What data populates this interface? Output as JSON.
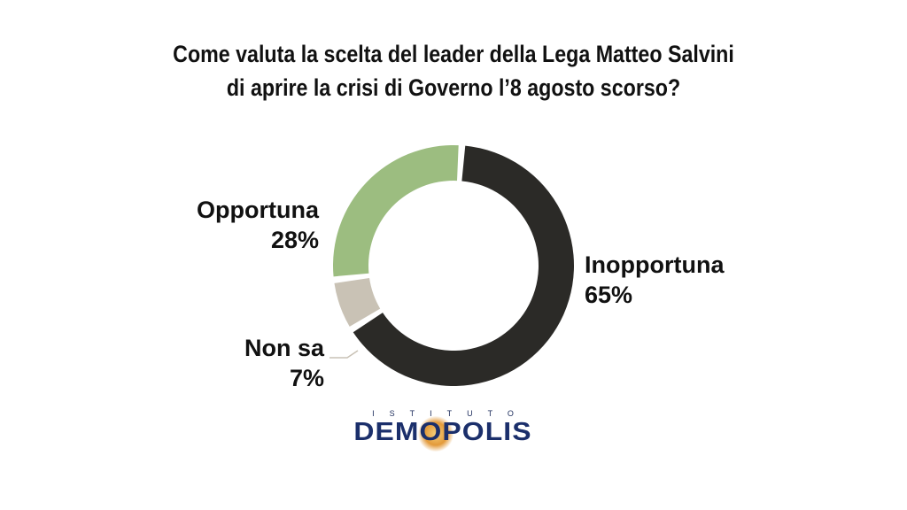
{
  "title_lines": [
    "Come valuta la scelta del leader della Lega Matteo Salvini",
    "di aprire la crisi di Governo l’8 agosto scorso?"
  ],
  "chart_data": {
    "type": "pie",
    "title": "Come valuta la scelta del leader della Lega Matteo Salvini di aprire la crisi di Governo l’8 agosto scorso?",
    "categories": [
      "Inopportuna",
      "Non sa",
      "Opportuna"
    ],
    "values": [
      65,
      7,
      28
    ],
    "value_labels": [
      "65%",
      "7%",
      "28%"
    ],
    "colors": [
      "#2b2a27",
      "#c9c2b5",
      "#9cbd80"
    ],
    "style": "donut"
  },
  "logo": {
    "subtitle": "ISTITUTO",
    "name": "DEMOPOLIS"
  }
}
